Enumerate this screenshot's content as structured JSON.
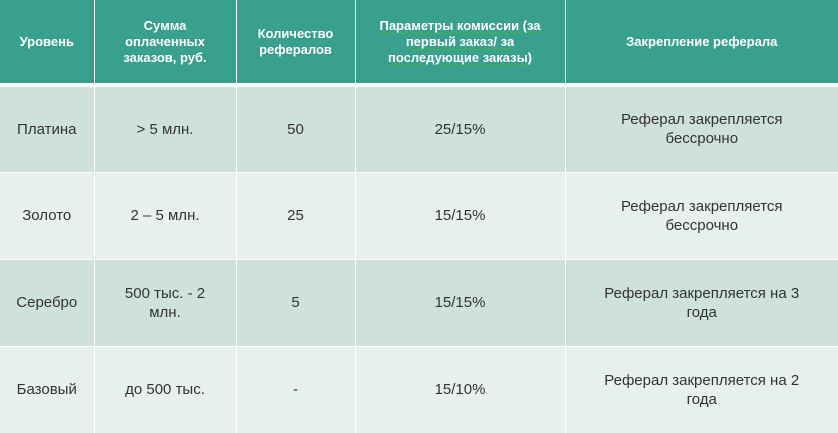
{
  "table": {
    "headers": [
      "Уровень",
      "Сумма оплаченных заказов, руб.",
      "Количество рефералов",
      "Параметры комиссии (за первый заказ/ за последующие заказы)",
      "Закрепление реферала"
    ],
    "rows": [
      [
        "Платина",
        "> 5 млн.",
        "50",
        "25/15%",
        "Реферал закрепляется бессрочно"
      ],
      [
        "Золото",
        "2 – 5 млн.",
        "25",
        "15/15%",
        "Реферал закрепляется бессрочно"
      ],
      [
        "Серебро",
        "500 тыс. - 2 млн.",
        "5",
        "15/15%",
        "Реферал закрепляется на 3 года"
      ],
      [
        "Базовый",
        "до 500 тыс.",
        "-",
        "15/10%",
        "Реферал закрепляется на 2 года"
      ]
    ]
  },
  "colors": {
    "header_bg": "#39a08f",
    "row_odd_bg": "#cfe1dd",
    "row_even_bg": "#e8f0ef"
  }
}
